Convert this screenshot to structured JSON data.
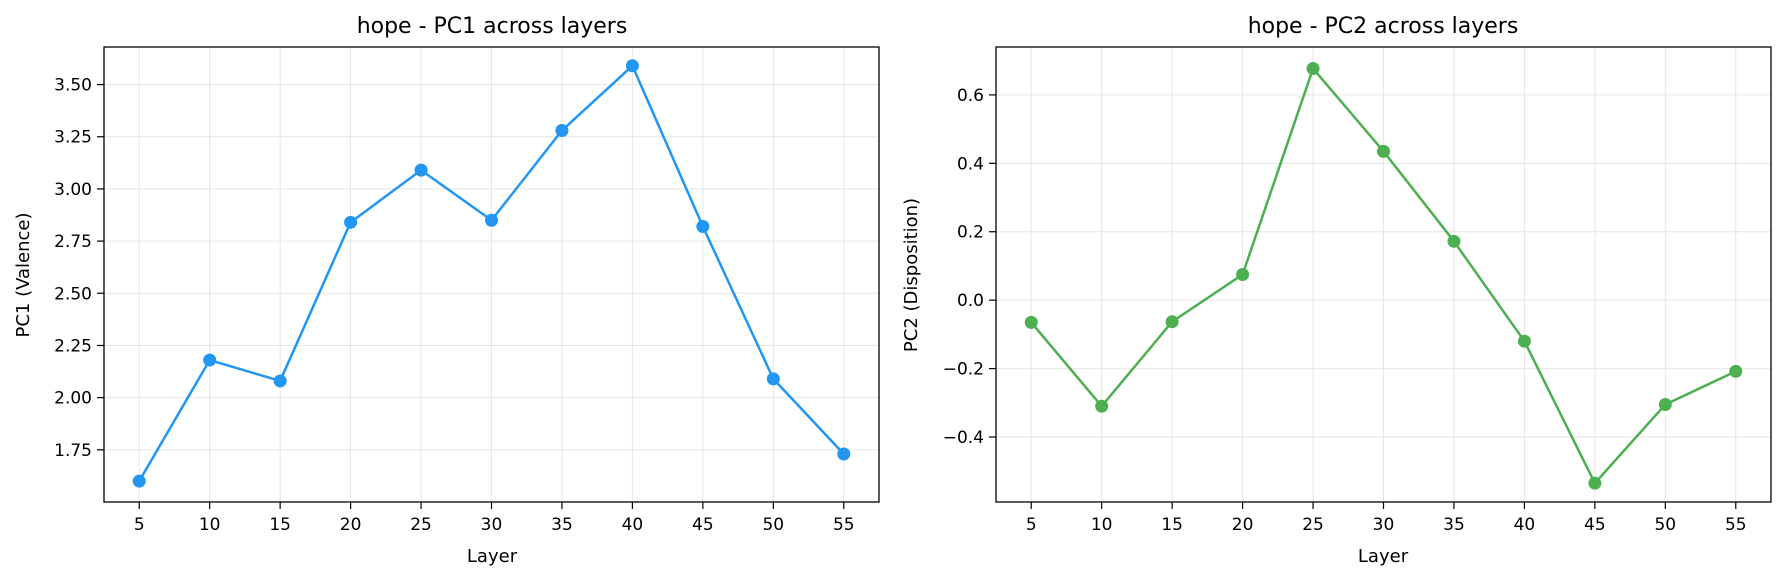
{
  "chart_data": [
    {
      "type": "line",
      "title": "hope - PC1 across layers",
      "xlabel": "Layer",
      "ylabel": "PC1 (Valence)",
      "x": [
        5,
        10,
        15,
        20,
        25,
        30,
        35,
        40,
        45,
        50,
        55
      ],
      "xticks": [
        5,
        10,
        15,
        20,
        25,
        30,
        35,
        40,
        45,
        50,
        55
      ],
      "xtick_labels": [
        "5",
        "10",
        "15",
        "20",
        "25",
        "30",
        "35",
        "40",
        "45",
        "50",
        "55"
      ],
      "yticks": [
        1.75,
        2.0,
        2.25,
        2.5,
        2.75,
        3.0,
        3.25,
        3.5
      ],
      "ytick_labels": [
        "1.75",
        "2.00",
        "2.25",
        "2.50",
        "2.75",
        "3.00",
        "3.25",
        "3.50"
      ],
      "xlim": [
        2.5,
        57.5
      ],
      "ylim": [
        1.5,
        3.68
      ],
      "grid": true,
      "series": [
        {
          "values": [
            1.6,
            2.18,
            2.08,
            2.84,
            3.09,
            2.85,
            3.28,
            3.59,
            2.82,
            2.09,
            1.73
          ],
          "color": "#2196f3",
          "marker": "circle"
        }
      ]
    },
    {
      "type": "line",
      "title": "hope - PC2 across layers",
      "xlabel": "Layer",
      "ylabel": "PC2 (Disposition)",
      "x": [
        5,
        10,
        15,
        20,
        25,
        30,
        35,
        40,
        45,
        50,
        55
      ],
      "xticks": [
        5,
        10,
        15,
        20,
        25,
        30,
        35,
        40,
        45,
        50,
        55
      ],
      "xtick_labels": [
        "5",
        "10",
        "15",
        "20",
        "25",
        "30",
        "35",
        "40",
        "45",
        "50",
        "55"
      ],
      "yticks": [
        -0.4,
        -0.2,
        0.0,
        0.2,
        0.4,
        0.6
      ],
      "ytick_labels": [
        "−0.4",
        "−0.2",
        "0.0",
        "0.2",
        "0.4",
        "0.6"
      ],
      "xlim": [
        2.5,
        57.5
      ],
      "ylim": [
        -0.59,
        0.74
      ],
      "grid": true,
      "series": [
        {
          "values": [
            -0.065,
            -0.31,
            -0.063,
            0.075,
            0.677,
            0.435,
            0.172,
            -0.12,
            -0.535,
            -0.305,
            -0.208
          ],
          "color": "#4caf50",
          "marker": "circle"
        }
      ]
    }
  ]
}
